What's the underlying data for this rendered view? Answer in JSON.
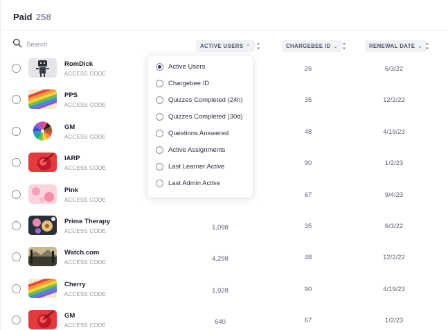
{
  "header": {
    "title": "Paid",
    "count": "258"
  },
  "search": {
    "placeholder": "Search"
  },
  "columns": {
    "active_users": "ACTIVE USERS",
    "chargebee_id": "CHARGEBEE ID",
    "renewal_date": "RENEWAL DATE"
  },
  "sort_menu": {
    "options": [
      {
        "label": "Active Users",
        "selected": true
      },
      {
        "label": "Chargebee ID",
        "selected": false
      },
      {
        "label": "Quizzes Completed (24h)",
        "selected": false
      },
      {
        "label": "Quizzes Completed (30d)",
        "selected": false
      },
      {
        "label": "Questions Answered",
        "selected": false
      },
      {
        "label": "Active Assignments",
        "selected": false
      },
      {
        "label": "Last Learner Active",
        "selected": false
      },
      {
        "label": "Last Admin Active",
        "selected": false
      }
    ]
  },
  "rows": [
    {
      "name": "RomDick",
      "type": "ACCESS CODE",
      "active_users": "",
      "chargebee_id": "26",
      "renewal_date": "6/3/22",
      "thumb": "robot-thumbnail"
    },
    {
      "name": "PPS",
      "type": "ACCESS CODE",
      "active_users": "",
      "chargebee_id": "35",
      "renewal_date": "12/2/22",
      "thumb": "rainbow-pencils-thumbnail"
    },
    {
      "name": "GM",
      "type": "ACCESS CODE",
      "active_users": "",
      "chargebee_id": "48",
      "renewal_date": "4/19/23",
      "thumb": "color-wheel-thumbnail"
    },
    {
      "name": "IARP",
      "type": "ACCESS CODE",
      "active_users": "",
      "chargebee_id": "90",
      "renewal_date": "1/2/23",
      "thumb": "red-abstract-thumbnail"
    },
    {
      "name": "Pink",
      "type": "ACCESS CODE",
      "active_users": "",
      "chargebee_id": "67",
      "renewal_date": "9/4/23",
      "thumb": "pink-balloons-thumbnail"
    },
    {
      "name": "Prime Therapy",
      "type": "ACCESS CODE",
      "active_users": "1,098",
      "chargebee_id": "35",
      "renewal_date": "6/3/22",
      "thumb": "flowers-thumbnail"
    },
    {
      "name": "Watch.com",
      "type": "ACCESS CODE",
      "active_users": "4,298",
      "chargebee_id": "48",
      "renewal_date": "12/2/22",
      "thumb": "landscape-thumbnail"
    },
    {
      "name": "Cherry",
      "type": "ACCESS CODE",
      "active_users": "1,928",
      "chargebee_id": "90",
      "renewal_date": "4/19/23",
      "thumb": "rainbow-pencils-thumbnail"
    },
    {
      "name": "GM",
      "type": "ACCESS CODE",
      "active_users": "640",
      "chargebee_id": "67",
      "renewal_date": "1/2/23",
      "thumb": "red-abstract-thumbnail"
    }
  ],
  "colors": {
    "accent_bg": "#f1f2f6",
    "muted_text": "#8e93a0",
    "border": "#eceef2"
  }
}
